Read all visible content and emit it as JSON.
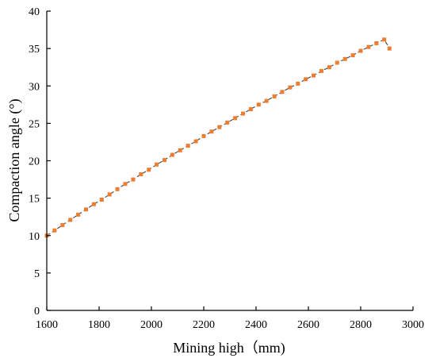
{
  "chart_data": {
    "type": "scatter",
    "title": "",
    "xlabel": "Mining high（mm)",
    "ylabel": "Compaction angle (°)",
    "xlim": [
      1600,
      3000
    ],
    "ylim": [
      0,
      40
    ],
    "x_ticks": [
      1600,
      1800,
      2000,
      2200,
      2400,
      2600,
      2800,
      3000
    ],
    "y_ticks": [
      0,
      5,
      10,
      15,
      20,
      25,
      30,
      35,
      40
    ],
    "grid": false,
    "colors": {
      "points": "#ED7D31",
      "line": "#333333"
    },
    "series": [
      {
        "marker": "square",
        "x": [
          1600,
          1630,
          1660,
          1690,
          1720,
          1750,
          1780,
          1810,
          1840,
          1870,
          1900,
          1930,
          1960,
          1990,
          2020,
          2050,
          2080,
          2110,
          2140,
          2170,
          2200,
          2230,
          2260,
          2290,
          2320,
          2350,
          2380,
          2410,
          2440,
          2470,
          2500,
          2530,
          2560,
          2590,
          2620,
          2650,
          2680,
          2710,
          2740,
          2770,
          2800,
          2830,
          2860,
          2890,
          2910
        ],
        "y": [
          10.0,
          10.7,
          11.4,
          12.1,
          12.8,
          13.5,
          14.2,
          14.8,
          15.5,
          16.2,
          16.9,
          17.5,
          18.2,
          18.8,
          19.5,
          20.1,
          20.8,
          21.4,
          22.0,
          22.6,
          23.3,
          23.9,
          24.5,
          25.1,
          25.7,
          26.3,
          26.9,
          27.5,
          28.0,
          28.6,
          29.2,
          29.8,
          30.3,
          30.9,
          31.4,
          32.0,
          32.5,
          33.1,
          33.6,
          34.1,
          34.7,
          35.2,
          35.7,
          36.2,
          35.0
        ]
      }
    ]
  }
}
